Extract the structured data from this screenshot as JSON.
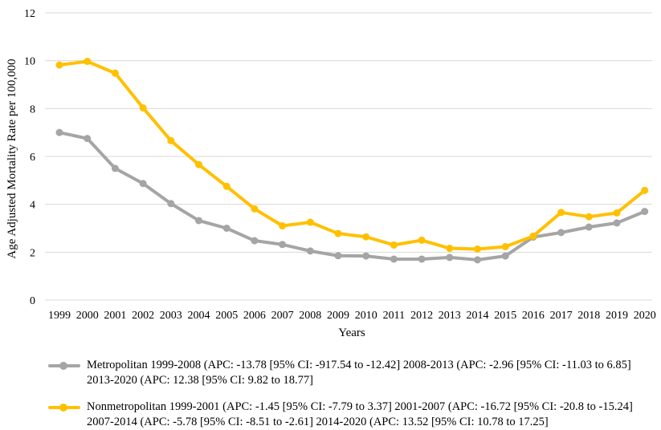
{
  "chart_data": {
    "type": "line",
    "title": "",
    "xlabel": "Years",
    "ylabel": "Age Adjusted Mortality Rate per 100,000",
    "ylim": [
      0,
      12
    ],
    "yticks": [
      0,
      2,
      4,
      6,
      8,
      10,
      12
    ],
    "grid": "horizontal",
    "legend_position": "bottom",
    "categories": [
      "1999",
      "2000",
      "2001",
      "2002",
      "2003",
      "2004",
      "2005",
      "2006",
      "2007",
      "2008",
      "2009",
      "2010",
      "2011",
      "2012",
      "2013",
      "2014",
      "2015",
      "2016",
      "2017",
      "2018",
      "2019",
      "2020"
    ],
    "series": [
      {
        "name": "Metropolitan 1999-2008 (APC: -13.78 [95% CI: -917.54 to -12.42] 2008-2013 (APC: -2.96 [95% CI: -11.03 to 6.85] 2013-2020 (APC: 12.38 [95% CI: 9.82 to 18.77]",
        "color": "#A5A5A5",
        "values": [
          7.0,
          6.75,
          5.5,
          4.87,
          4.03,
          3.32,
          3.0,
          2.48,
          2.32,
          2.05,
          1.85,
          1.84,
          1.71,
          1.71,
          1.78,
          1.68,
          1.84,
          2.63,
          2.82,
          3.05,
          3.22,
          3.7
        ]
      },
      {
        "name": "Nonmetropolitan 1999-2001 (APC: -1.45 [95% CI: -7.79 to 3.37] 2001-2007 (APC: -16.72 [95% CI: -20.8 to -15.24] 2007-2014 (APC: -5.78 [95% CI: -8.51 to -2.61] 2014-2020 (APC: 13.52 [95% CI: 10.78 to 17.25]",
        "color": "#FFC000",
        "values": [
          9.82,
          9.97,
          9.48,
          8.03,
          6.66,
          5.66,
          4.75,
          3.81,
          3.1,
          3.25,
          2.78,
          2.64,
          2.3,
          2.5,
          2.16,
          2.13,
          2.23,
          2.67,
          3.66,
          3.48,
          3.64,
          4.58
        ]
      }
    ]
  }
}
